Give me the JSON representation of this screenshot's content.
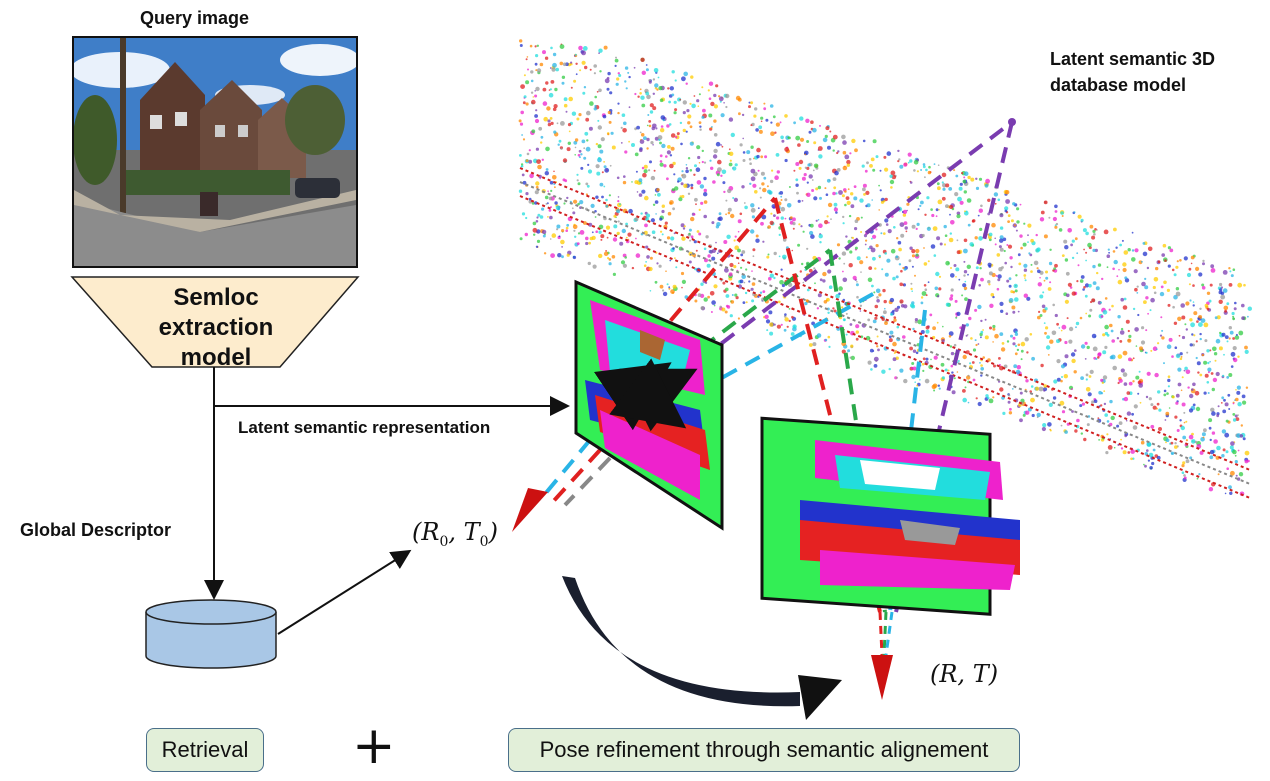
{
  "labels": {
    "query_image": "Query image",
    "model_line1": "Semloc",
    "model_line2": "extraction",
    "model_line3": "model",
    "latent_representation": "Latent semantic representation",
    "database_line1": "Latent semantic 3D",
    "database_line2": "database model",
    "global_descriptor": "Global Descriptor",
    "initial_pose_R": "R",
    "initial_pose_T": "T",
    "initial_pose_sub": "0",
    "final_pose": "(R, T)",
    "plus": "+"
  },
  "stages": {
    "retrieval": "Retrieval",
    "refinement": "Pose refinement through semantic alignement"
  },
  "colors": {
    "model_fill": "#fdeccd",
    "database_fill": "#a9c7e6",
    "pill_fill": "#e2efd9",
    "pose_arrow": "#cc1111",
    "ray_red": "#e02020",
    "ray_green": "#2aa84a",
    "ray_cyan": "#29b4e6",
    "ray_purple": "#7a3cb0",
    "segmentation_green": "#33ee55",
    "segmentation_magenta": "#ee22cc"
  }
}
